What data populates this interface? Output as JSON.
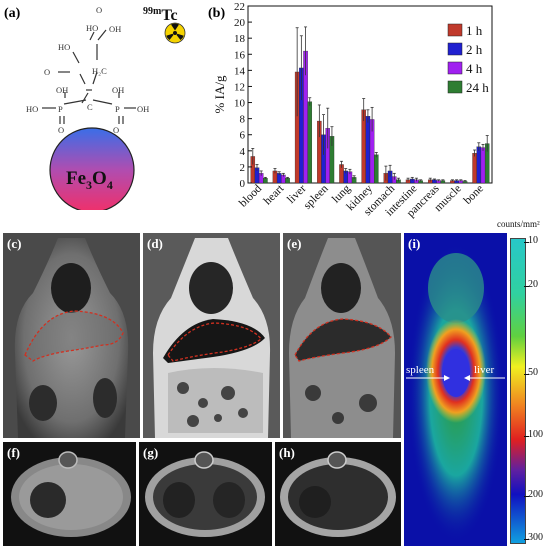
{
  "panel_labels": {
    "a": "(a)",
    "b": "(b)",
    "c": "(c)",
    "d": "(d)",
    "e": "(e)",
    "f": "(f)",
    "g": "(g)",
    "h": "(h)",
    "i": "(i)"
  },
  "molecule": {
    "isotope_sup": "99m",
    "isotope": "Tc",
    "core_main": "Fe",
    "core_sub1": "3",
    "core_o": "O",
    "core_sub2": "4",
    "atoms": {
      "ho1": "HO",
      "o1": "O",
      "o2": "O",
      "oh1": "OH",
      "h2c": "H₂C",
      "ho2": "HO",
      "oh2": "OH",
      "oh3": "OH",
      "p1": "P",
      "c": "C",
      "p2": "P",
      "ho3": "HO",
      "oh4": "OH",
      "o3": "O",
      "o4": "O"
    }
  },
  "chart_data": {
    "type": "bar",
    "categories": [
      "blood",
      "heart",
      "liver",
      "spleen",
      "lung",
      "kidney",
      "stomach",
      "intestine",
      "pancreas",
      "muscle",
      "bone"
    ],
    "series": [
      {
        "name": "1 h",
        "color": "#c0392b",
        "values": [
          3.3,
          1.5,
          13.8,
          7.7,
          2.3,
          9.1,
          1.2,
          0.4,
          0.4,
          0.3,
          3.7
        ],
        "errors": [
          1.0,
          0.3,
          5.5,
          2.0,
          0.4,
          1.4,
          0.9,
          0.2,
          0.2,
          0.1,
          0.4
        ]
      },
      {
        "name": "2 h",
        "color": "#2020d0",
        "values": [
          1.9,
          1.2,
          14.3,
          6.0,
          1.5,
          8.3,
          1.5,
          0.5,
          0.4,
          0.3,
          4.5
        ],
        "errors": [
          0.4,
          0.2,
          4.0,
          2.5,
          0.3,
          0.8,
          0.7,
          0.2,
          0.1,
          0.1,
          0.5
        ]
      },
      {
        "name": "4 h",
        "color": "#a020f0",
        "values": [
          1.2,
          1.0,
          16.4,
          6.8,
          1.4,
          7.9,
          0.8,
          0.4,
          0.3,
          0.3,
          4.4
        ],
        "errors": [
          0.3,
          0.2,
          3.0,
          2.5,
          0.3,
          1.5,
          0.4,
          0.2,
          0.1,
          0.1,
          0.4
        ]
      },
      {
        "name": "24 h",
        "color": "#2e7d32",
        "values": [
          0.6,
          0.6,
          10.1,
          5.8,
          0.7,
          3.5,
          0.4,
          0.3,
          0.3,
          0.2,
          4.9
        ],
        "errors": [
          0.1,
          0.1,
          0.5,
          1.2,
          0.2,
          0.3,
          0.2,
          0.1,
          0.1,
          0.1,
          1.0
        ]
      }
    ],
    "ylabel": "% IA/g",
    "ylim": [
      0,
      22
    ],
    "yticks": [
      0,
      2,
      4,
      6,
      8,
      10,
      12,
      14,
      16,
      18,
      20,
      22
    ],
    "legend_position": "top-right"
  },
  "scintigraphy": {
    "unit_label": "counts/mm²",
    "scale_ticks": [
      "10",
      "20",
      "50",
      "100",
      "200",
      "300"
    ],
    "spleen_label": "spleen",
    "liver_label": "liver"
  }
}
